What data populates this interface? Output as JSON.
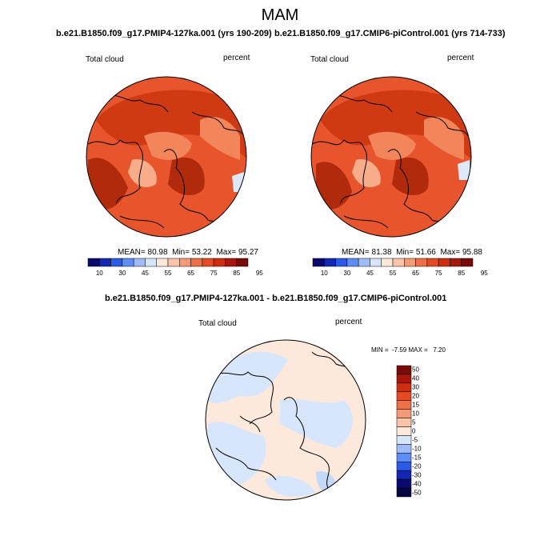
{
  "figure": {
    "season": "MAM"
  },
  "panel_left": {
    "title": "b.e21.B1850.f09_g17.PMIP4-127ka.001 (yrs 190-209)",
    "variable": "Total cloud",
    "units": "percent",
    "stats": {
      "mean_label": "MEAN=",
      "mean": "80.98",
      "min_label": "Min=",
      "min": "53.22",
      "max_label": "Max=",
      "max": "95.27"
    }
  },
  "panel_right": {
    "title": "b.e21.B1850.f09_g17.CMIP6-piControl.001 (yrs 714-733)",
    "variable": "Total cloud",
    "units": "percent",
    "stats": {
      "mean_label": "MEAN=",
      "mean": "81.38",
      "min_label": "Min=",
      "min": "51.66",
      "max_label": "Max=",
      "max": "95.88"
    }
  },
  "panel_diff": {
    "title": "b.e21.B1850.f09_g17.PMIP4-127ka.001 - b.e21.B1850.f09_g17.CMIP6-piControl.001",
    "variable": "Total cloud",
    "units": "percent",
    "minmax": "MIN =  -7.59 MAX =   7.20"
  },
  "colorbar_abs": {
    "colors": [
      "#0a0a6e",
      "#1427b4",
      "#2a5ae6",
      "#5f8cf5",
      "#9ebcf7",
      "#d8e6fb",
      "#fde8dc",
      "#fac3aa",
      "#f59a76",
      "#ef6f48",
      "#e54a24",
      "#cf2d0e",
      "#a8180a",
      "#7a0a05"
    ],
    "tick_labels": [
      "10",
      "30",
      "45",
      "55",
      "65",
      "75",
      "85",
      "95"
    ]
  },
  "colorbar_diff": {
    "colors": [
      "#7a0a05",
      "#a8180a",
      "#cf2d0e",
      "#e54a24",
      "#ef6f48",
      "#f59a76",
      "#fac3aa",
      "#fde8dc",
      "#d8e6fb",
      "#9ebcf7",
      "#5f8cf5",
      "#2a5ae6",
      "#1427b4",
      "#0a0a6e",
      "#060640"
    ],
    "tick_labels": [
      "50",
      "40",
      "30",
      "20",
      "15",
      "10",
      "5",
      "0",
      "-5",
      "-10",
      "-15",
      "-20",
      "-30",
      "-40",
      "-50"
    ]
  },
  "map_colors": {
    "abs_base": "#e8552c",
    "abs_dark": "#cf3a13",
    "abs_darker": "#b22a0c",
    "abs_light": "#f2855a",
    "abs_pale": "#f7ad89",
    "abs_cool": "#dde9fb",
    "diff_base": "#fde8dc",
    "diff_cool": "#d8e6fb",
    "diff_cool2": "#c4d8f8",
    "coast": "#000000"
  }
}
